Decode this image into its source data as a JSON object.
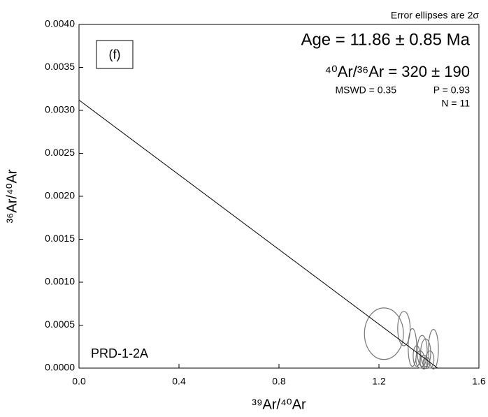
{
  "chart_data": {
    "type": "isochron",
    "note_top": "Error ellipses are 2σ",
    "panel_label": "(f)",
    "age": "Age = 11.86 ± 0.85 Ma",
    "intercept": "⁴⁰Ar/³⁶Ar = 320 ± 190",
    "mswd": "MSWD = 0.35",
    "p_value": "P = 0.93",
    "n": "N = 11",
    "sample": "PRD-1-2A",
    "x_label": "³⁹Ar/⁴⁰Ar",
    "y_label": "³⁶Ar/⁴⁰Ar",
    "xlim": [
      0,
      1.6
    ],
    "ylim": [
      0,
      0.004
    ],
    "xticks": [
      {
        "value": 0,
        "label": "0.0"
      },
      0.4,
      0.8,
      1.2,
      1.6
    ],
    "yticks": [
      {
        "value": 0,
        "label": "0.0000"
      },
      {
        "value": 0.0005,
        "label": "0.0005"
      },
      {
        "value": 0.001,
        "label": "0.0010"
      },
      {
        "value": 0.0015,
        "label": "0.0015"
      },
      {
        "value": 0.002,
        "label": "0.0020"
      },
      {
        "value": 0.0025,
        "label": "0.0025"
      },
      {
        "value": 0.003,
        "label": "0.0030"
      },
      {
        "value": 0.0035,
        "label": "0.0035"
      },
      {
        "value": 0.004,
        "label": "0.0040"
      }
    ],
    "ellipse_color": "#777777",
    "line_color": "#000000",
    "series": [
      {
        "x": [
          1.22,
          1.3,
          1.334,
          1.373,
          1.387,
          1.418,
          1.365,
          1.39,
          1.351,
          1.404,
          1.38
        ],
        "xerr": [
          0.078,
          0.025,
          0.017,
          0.02,
          0.02,
          0.02,
          0.017,
          0.014,
          0.014,
          0.016,
          0.015
        ],
        "values": [
          0.0004,
          0.00046,
          0.00024,
          0.0002,
          0.00018,
          0.00022,
          0.0001,
          6e-05,
          0.00014,
          0.0001,
          7e-05
        ],
        "yerr": [
          0.0003,
          0.0002,
          0.00022,
          0.00018,
          0.00016,
          0.00023,
          0.0001,
          6.5e-05,
          0.00012,
          0.0001,
          8e-05
        ]
      }
    ],
    "fit_line": {
      "x": [
        0,
        1.435
      ],
      "values": [
        0.00312,
        0
      ]
    }
  }
}
